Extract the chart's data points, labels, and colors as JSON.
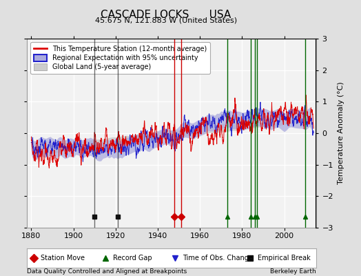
{
  "title": "CASCADE LOCKS      USA",
  "subtitle": "45.675 N, 121.883 W (United States)",
  "footer_left": "Data Quality Controlled and Aligned at Breakpoints",
  "footer_right": "Berkeley Earth",
  "xlim": [
    1878,
    2015
  ],
  "ylim": [
    -3,
    3
  ],
  "yticks": [
    -3,
    -2,
    -1,
    0,
    1,
    2,
    3
  ],
  "xticks": [
    1880,
    1900,
    1920,
    1940,
    1960,
    1980,
    2000
  ],
  "ylabel": "Temperature Anomaly (°C)",
  "bg_color": "#e0e0e0",
  "plot_bg_color": "#f2f2f2",
  "station_move_years": [
    1948,
    1951
  ],
  "station_move_color": "#cc0000",
  "record_gap_years": [
    1973,
    1984,
    1986,
    1987,
    2010
  ],
  "record_gap_color": "#006600",
  "time_obs_years": [],
  "empirical_break_years": [
    1910,
    1921
  ],
  "empirical_break_color": "#111111",
  "red_line_color": "#dd0000",
  "blue_line_color": "#2222cc",
  "blue_fill_color": "#aaaadd",
  "gray_fill_color": "#cccccc",
  "seed": 12345
}
